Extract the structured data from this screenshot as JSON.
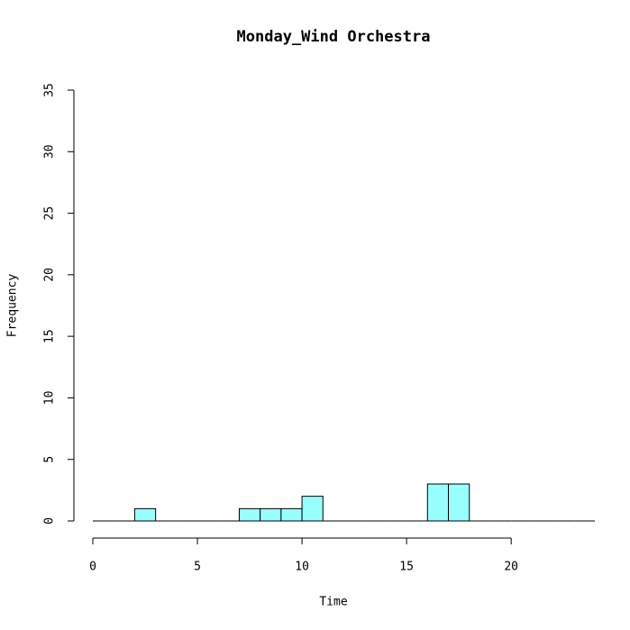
{
  "chart_data": {
    "type": "histogram",
    "title": "Monday_Wind Orchestra",
    "x_label": "Time",
    "y_label": "Frequency",
    "bins": [
      0,
      1,
      2,
      3,
      4,
      5,
      6,
      7,
      8,
      9,
      10,
      11,
      12,
      13,
      14,
      15,
      16,
      17,
      18,
      19,
      20,
      21,
      22,
      23,
      24
    ],
    "values": [
      0,
      0,
      1,
      0,
      0,
      0,
      0,
      1,
      1,
      1,
      2,
      0,
      0,
      0,
      0,
      0,
      3,
      3,
      0,
      0,
      0,
      0,
      0,
      0
    ],
    "color": "#98ffff",
    "xlim": [
      0,
      24
    ],
    "xticks": [
      0,
      5,
      10,
      15,
      20
    ],
    "ylim": [
      0,
      35
    ],
    "yticks": [
      0,
      5,
      10,
      15,
      20,
      25,
      30,
      35
    ]
  }
}
